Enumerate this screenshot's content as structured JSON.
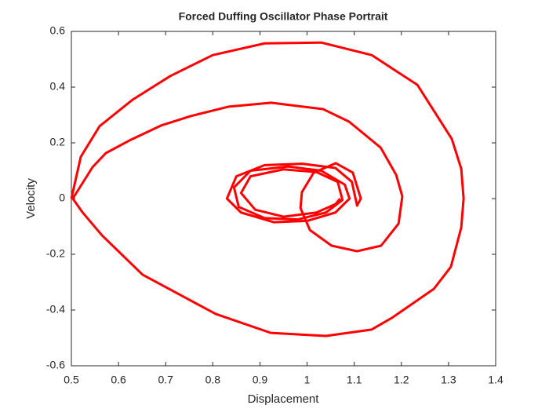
{
  "chart_data": {
    "type": "line",
    "title": "Forced Duffing Oscillator Phase Portrait",
    "x_label": "Displacement",
    "y_label": "Velocity",
    "x": [
      0.5,
      0.52,
      0.56,
      0.63,
      0.71,
      0.8,
      0.91,
      1.03,
      1.137,
      1.234,
      1.307,
      1.327,
      1.332,
      1.327,
      1.305,
      1.269,
      1.18,
      1.137,
      1.04,
      0.923,
      0.806,
      0.651,
      0.565,
      0.523,
      0.503,
      0.545,
      0.573,
      0.626,
      0.69,
      0.753,
      0.834,
      0.924,
      1.034,
      1.089,
      1.156,
      1.189,
      1.202,
      1.194,
      1.157,
      1.106,
      1.052,
      1.006,
      0.986,
      0.989,
      1.014,
      1.061,
      1.097,
      1.114,
      1.106,
      1.095,
      1.06,
      0.99,
      0.91,
      0.85,
      0.83,
      0.86,
      0.93,
      1.0,
      1.06,
      1.09,
      1.08,
      1.03,
      0.96,
      0.88,
      0.845,
      0.855,
      0.91,
      0.98,
      1.04,
      1.075,
      1.065,
      1.02,
      0.95,
      0.88,
      0.86,
      0.89,
      0.95,
      1.02,
      1.06,
      1.07
    ],
    "values": [
      0.0,
      0.15,
      0.26,
      0.355,
      0.44,
      0.515,
      0.557,
      0.56,
      0.515,
      0.408,
      0.214,
      0.107,
      0.0,
      -0.104,
      -0.245,
      -0.324,
      -0.428,
      -0.47,
      -0.493,
      -0.482,
      -0.414,
      -0.273,
      -0.132,
      -0.048,
      0.0,
      0.113,
      0.163,
      0.211,
      0.262,
      0.296,
      0.33,
      0.344,
      0.321,
      0.276,
      0.183,
      0.085,
      0.008,
      -0.09,
      -0.169,
      -0.189,
      -0.169,
      -0.113,
      -0.034,
      0.023,
      0.093,
      0.127,
      0.093,
      0.0,
      -0.025,
      0.06,
      0.11,
      0.125,
      0.12,
      0.08,
      0.0,
      -0.05,
      -0.085,
      -0.08,
      -0.05,
      0.0,
      0.05,
      0.1,
      0.115,
      0.1,
      0.04,
      -0.03,
      -0.07,
      -0.075,
      -0.05,
      -0.005,
      0.06,
      0.095,
      0.105,
      0.08,
      0.02,
      -0.04,
      -0.065,
      -0.05,
      -0.02,
      0.0
    ],
    "color": "#ff0000",
    "xlim": [
      0.5,
      1.4
    ],
    "ylim": [
      -0.6,
      0.6
    ],
    "xticks": [
      0.5,
      0.6,
      0.7,
      0.8,
      0.9,
      1,
      1.1,
      1.2,
      1.3,
      1.4
    ],
    "yticks": [
      -0.6,
      -0.4,
      -0.2,
      0,
      0.2,
      0.4,
      0.6
    ]
  }
}
